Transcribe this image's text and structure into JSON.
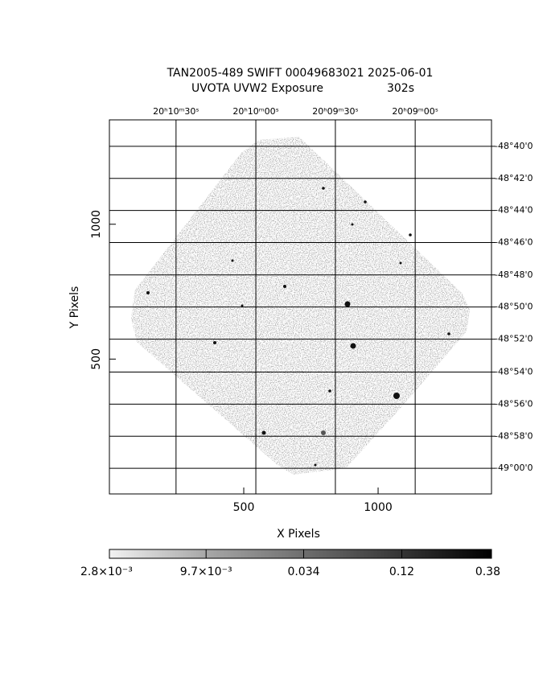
{
  "chart_data": {
    "type": "image",
    "title": "TAN2005-489 SWIFT 00049683021 2025-06-01",
    "subtitle": "UVOTA UVW2 Exposure",
    "exposure": "302s",
    "xlabel": "X Pixels",
    "ylabel": "Y Pixels",
    "xlim": [
      0,
      1422
    ],
    "ylim": [
      0,
      1387
    ],
    "xticks": [
      500,
      1000
    ],
    "yticks": [
      500,
      1000
    ],
    "grid": true,
    "x2ticks": [
      {
        "value": 248,
        "label": "20ʰ10ᵐ30ˢ"
      },
      {
        "value": 545,
        "label": "20ʰ10ᵐ00ˢ"
      },
      {
        "value": 841,
        "label": "20ʰ09ᵐ30ˢ"
      },
      {
        "value": 1138,
        "label": "20ʰ09ᵐ00ˢ"
      }
    ],
    "y2ticks": [
      {
        "value": 1289,
        "label": "-48°40'0"
      },
      {
        "value": 1170,
        "label": "-48°42'0"
      },
      {
        "value": 1051,
        "label": "-48°44'0"
      },
      {
        "value": 932,
        "label": "-48°46'0"
      },
      {
        "value": 812,
        "label": "-48°48'0"
      },
      {
        "value": 693,
        "label": "-48°50'0"
      },
      {
        "value": 574,
        "label": "-48°52'0"
      },
      {
        "value": 452,
        "label": "-48°54'0"
      },
      {
        "value": 333,
        "label": "-48°56'0"
      },
      {
        "value": 214,
        "label": "-48°58'0"
      },
      {
        "value": 95,
        "label": "-49°00'0"
      }
    ],
    "colorbar": {
      "lim": [
        0.0028,
        0.38
      ],
      "log": true,
      "ticks": [
        {
          "value": 0.0028,
          "label": "2.8×10⁻³"
        },
        {
          "value": 0.0097,
          "label": "9.7×10⁻³"
        },
        0.034,
        0.12,
        0.38
      ]
    }
  }
}
